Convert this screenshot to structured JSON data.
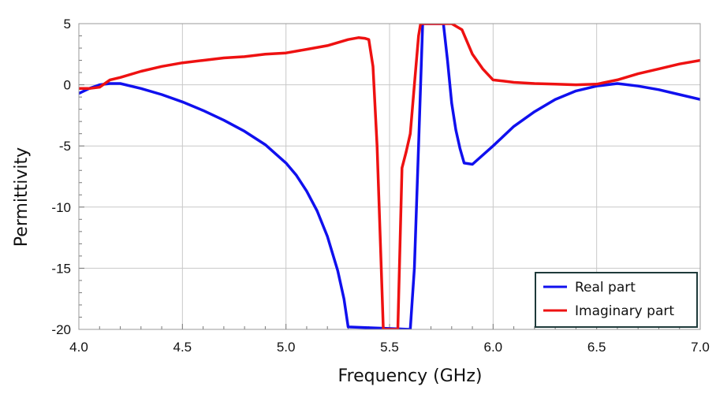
{
  "chart_data": {
    "type": "line",
    "title": "",
    "xlabel": "Frequency (GHz)",
    "ylabel": "Permittivity",
    "xlim": [
      4.0,
      7.0
    ],
    "ylim": [
      -20,
      5
    ],
    "x_ticks": [
      4.0,
      4.5,
      5.0,
      5.5,
      6.0,
      6.5,
      7.0
    ],
    "x_tick_labels": [
      "4.0",
      "4.5",
      "5.0",
      "5.5",
      "6.0",
      "6.5",
      "7.0"
    ],
    "y_ticks": [
      5,
      0,
      -5,
      -10,
      -15,
      -20
    ],
    "y_tick_labels": [
      "5",
      "0",
      "-5",
      "-10",
      "-15",
      "-20"
    ],
    "grid": true,
    "legend_position": "bottom-right",
    "colors": {
      "real": "#1010ee",
      "imag": "#ee1111",
      "grid": "#c8c8c8",
      "frame": "#999999",
      "legend_border": "#1e3a3a"
    },
    "series": [
      {
        "name": "Real part",
        "color": "#1010ee",
        "x": [
          4.0,
          4.05,
          4.1,
          4.15,
          4.2,
          4.3,
          4.4,
          4.5,
          4.6,
          4.7,
          4.8,
          4.9,
          5.0,
          5.05,
          5.1,
          5.15,
          5.2,
          5.25,
          5.28,
          5.3,
          5.6,
          5.62,
          5.64,
          5.66,
          5.68,
          5.7,
          5.72,
          5.74,
          5.75,
          5.76,
          5.78,
          5.8,
          5.82,
          5.84,
          5.86,
          5.9,
          6.0,
          6.1,
          6.2,
          6.3,
          6.4,
          6.5,
          6.6,
          6.7,
          6.8,
          6.9,
          7.0
        ],
        "values": [
          -0.7,
          -0.3,
          0.0,
          0.1,
          0.1,
          -0.3,
          -0.8,
          -1.4,
          -2.1,
          -2.9,
          -3.8,
          -4.9,
          -6.4,
          -7.4,
          -8.7,
          -10.3,
          -12.4,
          -15.2,
          -17.5,
          -19.8,
          -20,
          -15,
          -5,
          5,
          5,
          5,
          5,
          5,
          5,
          5,
          2.0,
          -1.5,
          -3.7,
          -5.2,
          -6.4,
          -6.5,
          -5.0,
          -3.4,
          -2.2,
          -1.2,
          -0.5,
          -0.1,
          0.1,
          -0.1,
          -0.4,
          -0.8,
          -1.2
        ]
      },
      {
        "name": "Imaginary part",
        "color": "#ee1111",
        "x": [
          4.0,
          4.05,
          4.1,
          4.15,
          4.2,
          4.3,
          4.4,
          4.5,
          4.6,
          4.7,
          4.8,
          4.9,
          5.0,
          5.1,
          5.2,
          5.3,
          5.35,
          5.38,
          5.4,
          5.42,
          5.44,
          5.46,
          5.47,
          5.48,
          5.54,
          5.56,
          5.58,
          5.6,
          5.62,
          5.64,
          5.65,
          5.66,
          5.8,
          5.85,
          5.9,
          5.95,
          6.0,
          6.05,
          6.1,
          6.2,
          6.3,
          6.4,
          6.5,
          6.6,
          6.7,
          6.8,
          6.9,
          7.0
        ],
        "values": [
          -0.3,
          -0.3,
          -0.2,
          0.4,
          0.6,
          1.1,
          1.5,
          1.8,
          2.0,
          2.2,
          2.3,
          2.5,
          2.6,
          2.9,
          3.2,
          3.7,
          3.85,
          3.8,
          3.7,
          1.5,
          -5,
          -15,
          -20,
          -20,
          -20,
          -6.8,
          -5.5,
          -4,
          0,
          4,
          5,
          5,
          5,
          4.5,
          2.5,
          1.3,
          0.4,
          0.3,
          0.2,
          0.1,
          0.05,
          0.0,
          0.05,
          0.4,
          0.9,
          1.3,
          1.7,
          2.0
        ]
      }
    ]
  }
}
